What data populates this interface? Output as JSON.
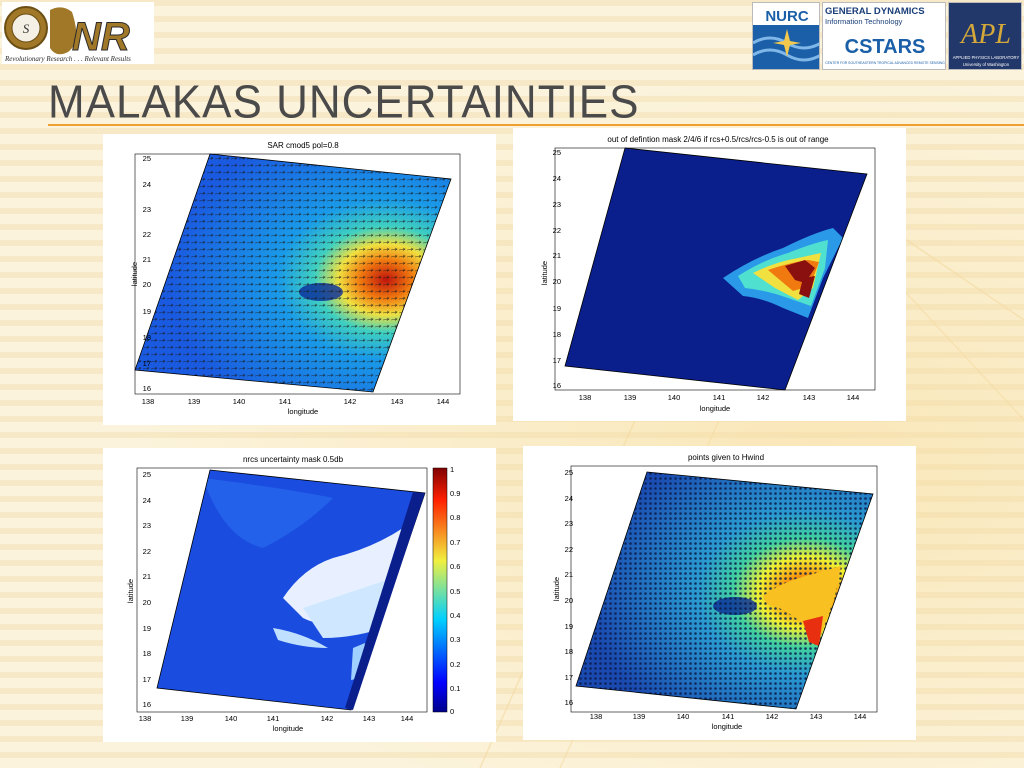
{
  "header": {
    "title": "MALAKAS UNCERTAINTIES",
    "onr_logo": {
      "text": "NR",
      "tagline": "Revolutionary Research . . . Relevant Results"
    },
    "partners": [
      {
        "name": "NURC"
      },
      {
        "name": "GENERAL DYNAMICS",
        "sub": "Information Technology",
        "name2": "CSTARS",
        "sub2": "CENTER FOR SOUTHEASTERN TROPICAL ADVANCED REMOTE SENSING"
      },
      {
        "name": "APL",
        "sub": "APPLIED PHYSICS LABORATORY",
        "sub2": "University of Washington"
      }
    ]
  },
  "colors": {
    "accent": "#f0a030",
    "title": "#4a4a4a",
    "map_base": "#0a1e8c"
  },
  "panels": [
    {
      "id": "sar",
      "title": "SAR cmod5 pol=0.8",
      "xlabel": "longitude",
      "ylabel": "latitude",
      "xticks": [
        "138",
        "139",
        "140",
        "141",
        "142",
        "143",
        "144"
      ],
      "yticks": [
        "16",
        "17",
        "18",
        "19",
        "20",
        "21",
        "22",
        "23",
        "24",
        "25"
      ]
    },
    {
      "id": "outdef",
      "title": "out of defintion mask 2/4/6 if rcs+0.5/rcs/rcs-0.5 is out of range",
      "xlabel": "longitude",
      "ylabel": "latitude",
      "xticks": [
        "138",
        "139",
        "140",
        "141",
        "142",
        "143",
        "144"
      ],
      "yticks": [
        "16",
        "17",
        "18",
        "19",
        "20",
        "21",
        "22",
        "23",
        "24",
        "25"
      ]
    },
    {
      "id": "nrcs",
      "title": "nrcs uncertainty mask 0.5db",
      "xlabel": "longitude",
      "ylabel": "latitude",
      "xticks": [
        "138",
        "139",
        "140",
        "141",
        "142",
        "143",
        "144"
      ],
      "yticks": [
        "16",
        "17",
        "18",
        "19",
        "20",
        "21",
        "22",
        "23",
        "24",
        "25"
      ],
      "colorbar": [
        "1",
        "0.9",
        "0.8",
        "0.7",
        "0.6",
        "0.5",
        "0.4",
        "0.3",
        "0.2",
        "0.1",
        "0"
      ]
    },
    {
      "id": "hwind",
      "title": "points given to Hwind",
      "xlabel": "longitude",
      "ylabel": "latitude",
      "xticks": [
        "138",
        "139",
        "140",
        "141",
        "142",
        "143",
        "144"
      ],
      "yticks": [
        "16",
        "17",
        "18",
        "19",
        "20",
        "21",
        "22",
        "23",
        "24",
        "25"
      ]
    }
  ]
}
